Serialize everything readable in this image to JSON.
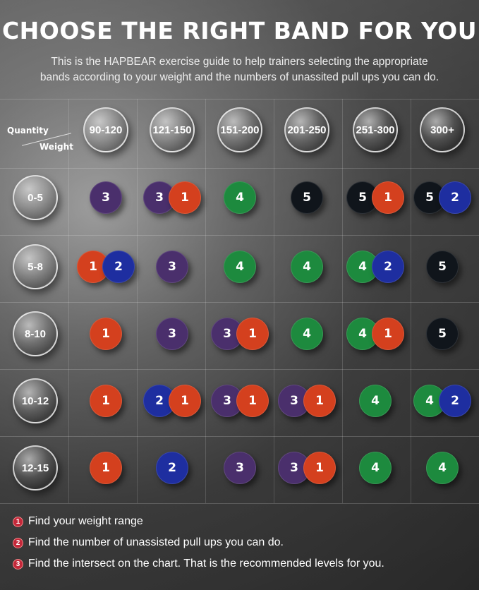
{
  "title": "CHOOSE THE RIGHT BAND FOR YOU",
  "subtitle_lines": [
    "This is the HAPBEAR exercise guide to help trainers selecting the appropriate",
    "bands according to your weight and the numbers of unassited pull ups you can do."
  ],
  "corner": {
    "top": "Quantity",
    "bottom": "Weight"
  },
  "weights": [
    "90-120",
    "121-150",
    "151-200",
    "201-250",
    "251-300",
    "300+"
  ],
  "quantities": [
    "0-5",
    "5-8",
    "8-10",
    "10-12",
    "12-15"
  ],
  "band_colors": {
    "1": "#d4401e",
    "2": "#1e2ea0",
    "3": "#4a2f6c",
    "4": "#1d8a3e",
    "5": "#10151b"
  },
  "grid": [
    [
      [
        "3"
      ],
      [
        "3",
        "1"
      ],
      [
        "4"
      ],
      [
        "5"
      ],
      [
        "5",
        "1"
      ],
      [
        "5",
        "2"
      ]
    ],
    [
      [
        "1",
        "2"
      ],
      [
        "3"
      ],
      [
        "4"
      ],
      [
        "4"
      ],
      [
        "4",
        "2"
      ],
      [
        "5"
      ]
    ],
    [
      [
        "1"
      ],
      [
        "3"
      ],
      [
        "3",
        "1"
      ],
      [
        "4"
      ],
      [
        "4",
        "1"
      ],
      [
        "5"
      ]
    ],
    [
      [
        "1"
      ],
      [
        "2",
        "1"
      ],
      [
        "3",
        "1"
      ],
      [
        "3",
        "1"
      ],
      [
        "4"
      ],
      [
        "4",
        "2"
      ]
    ],
    [
      [
        "1"
      ],
      [
        "2"
      ],
      [
        "3"
      ],
      [
        "3",
        "1"
      ],
      [
        "4"
      ],
      [
        "4"
      ]
    ]
  ],
  "steps": [
    {
      "n": "1",
      "text": "Find your weight range"
    },
    {
      "n": "2",
      "text": "Find the number of unassisted pull ups you can do."
    },
    {
      "n": "3",
      "text": "Find the intersect on the chart. That is the recommended levels for you."
    }
  ]
}
